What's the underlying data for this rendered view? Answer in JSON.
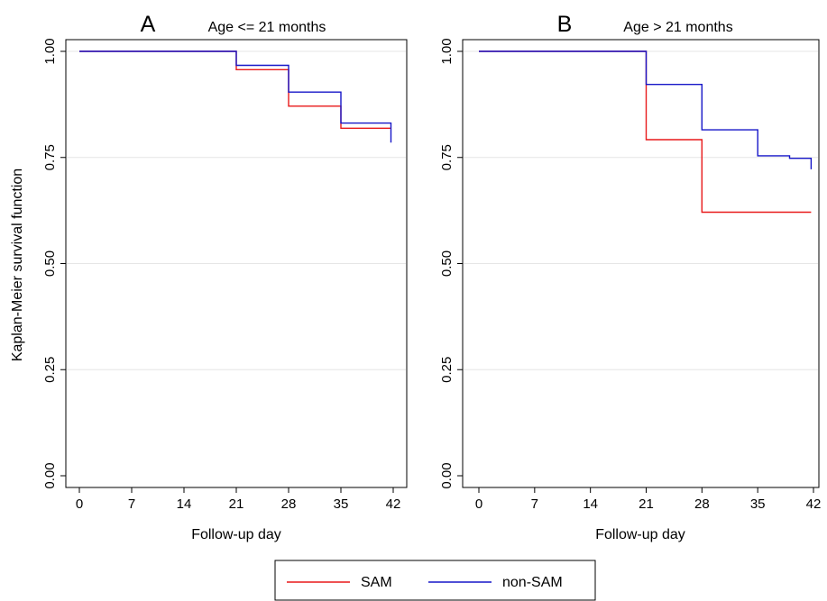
{
  "shared": {
    "ylabel": "Kaplan-Meier survival function",
    "legend": {
      "placement": "bottom",
      "items": [
        {
          "label": "SAM",
          "color": "#e8191a"
        },
        {
          "label": "non-SAM",
          "color": "#1616c8"
        }
      ]
    }
  },
  "chart_data": [
    {
      "type": "line",
      "step": true,
      "panel_letter": "A",
      "subtitle": "Age <= 21 months",
      "xlabel": "Follow-up day",
      "xlim": [
        0,
        42
      ],
      "ylim": [
        0,
        1
      ],
      "xticks": [
        0,
        7,
        14,
        21,
        28,
        35,
        42
      ],
      "yticks": [
        0,
        0.25,
        0.5,
        0.75,
        1
      ],
      "ytick_labels": [
        "0.00",
        "0.25",
        "0.50",
        "0.75",
        "1.00"
      ],
      "grid": true,
      "series": [
        {
          "name": "SAM",
          "color": "#e8191a",
          "x": [
            0,
            21,
            28,
            35,
            41.7
          ],
          "y": [
            1.0,
            0.957,
            0.871,
            0.819,
            0.819
          ]
        },
        {
          "name": "non-SAM",
          "color": "#1616c8",
          "x": [
            0,
            21,
            28,
            35,
            41.7,
            41.7
          ],
          "y": [
            1.0,
            0.967,
            0.904,
            0.831,
            0.831,
            0.785
          ]
        }
      ]
    },
    {
      "type": "line",
      "step": true,
      "panel_letter": "B",
      "subtitle": "Age > 21 months",
      "xlabel": "Follow-up day",
      "xlim": [
        0,
        42
      ],
      "ylim": [
        0,
        1
      ],
      "xticks": [
        0,
        7,
        14,
        21,
        28,
        35,
        42
      ],
      "yticks": [
        0,
        0.25,
        0.5,
        0.75,
        1
      ],
      "ytick_labels": [
        "0.00",
        "0.25",
        "0.50",
        "0.75",
        "1.00"
      ],
      "grid": true,
      "series": [
        {
          "name": "SAM",
          "color": "#e8191a",
          "x": [
            0,
            21,
            28,
            41.7
          ],
          "y": [
            1.0,
            0.792,
            0.621,
            0.621
          ]
        },
        {
          "name": "non-SAM",
          "color": "#1616c8",
          "x": [
            0,
            21,
            28,
            35,
            39,
            41.7,
            41.7
          ],
          "y": [
            1.0,
            0.922,
            0.815,
            0.754,
            0.748,
            0.748,
            0.722
          ]
        }
      ]
    }
  ]
}
